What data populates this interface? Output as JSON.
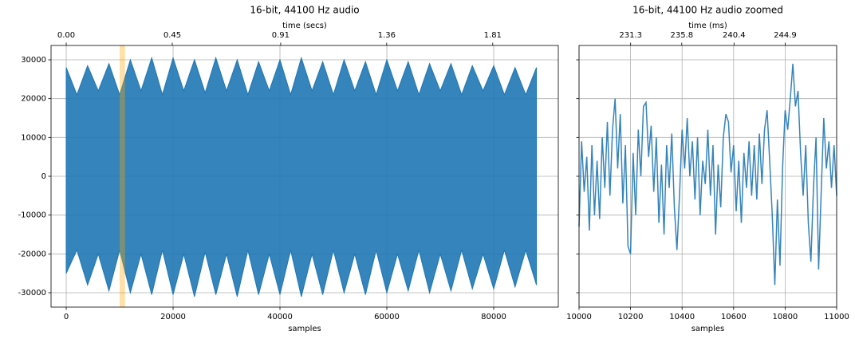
{
  "chart_data": [
    {
      "type": "area",
      "title": "16-bit, 44100 Hz audio",
      "xlabel": "samples",
      "x2label": "time (secs)",
      "color": "#1f77b4",
      "grid": true,
      "xlim": [
        -2840,
        92090
      ],
      "ylim": [
        -33700,
        33700
      ],
      "xticks": [
        0,
        20000,
        40000,
        60000,
        80000
      ],
      "yticks": [
        -30000,
        -20000,
        -10000,
        0,
        10000,
        20000,
        30000
      ],
      "x2lim": [
        -0.0644,
        2.0882
      ],
      "x2ticks": [
        {
          "value": 0,
          "label": "0.00"
        },
        0.45,
        0.91,
        1.36,
        1.81
      ],
      "span": {
        "x": [
          10000,
          11000
        ],
        "color": "#ffa500"
      },
      "x": [
        0,
        2000,
        4000,
        6000,
        8000,
        10000,
        12000,
        14000,
        16000,
        18000,
        20000,
        22000,
        24000,
        26000,
        28000,
        30000,
        32000,
        34000,
        36000,
        38000,
        40000,
        42000,
        44000,
        46000,
        48000,
        50000,
        52000,
        54000,
        56000,
        58000,
        60000,
        62000,
        64000,
        66000,
        68000,
        70000,
        72000,
        74000,
        76000,
        78000,
        80000,
        82000,
        84000,
        86000,
        88000
      ],
      "upper": [
        28000,
        21000,
        28500,
        22000,
        29000,
        21000,
        30000,
        22000,
        30500,
        21000,
        30500,
        22000,
        30000,
        21500,
        30500,
        22000,
        30000,
        21000,
        29500,
        22000,
        30000,
        21000,
        30500,
        22000,
        29500,
        21000,
        30000,
        22000,
        29500,
        21000,
        30000,
        22000,
        29500,
        21000,
        29000,
        22000,
        29000,
        21000,
        28500,
        22000,
        28500,
        21000,
        28000,
        21000,
        28000
      ],
      "lower": [
        -25000,
        -19000,
        -28000,
        -20000,
        -29500,
        -19000,
        -30000,
        -20000,
        -30500,
        -19000,
        -30500,
        -20000,
        -31000,
        -19500,
        -30500,
        -20000,
        -31000,
        -19000,
        -30500,
        -20000,
        -30500,
        -19000,
        -31000,
        -20000,
        -30500,
        -19000,
        -30000,
        -20000,
        -30500,
        -19000,
        -30000,
        -20000,
        -29500,
        -19000,
        -30000,
        -20000,
        -29500,
        -19000,
        -29000,
        -20000,
        -29000,
        -19000,
        -28500,
        -19000,
        -28000
      ]
    },
    {
      "type": "line",
      "title": "16-bit, 44100 Hz audio zoomed",
      "xlabel": "samples",
      "x2label": "time (ms)",
      "color": "#1f77b4",
      "grid": true,
      "sharey": true,
      "xlim": [
        10000,
        11000
      ],
      "ylim": [
        -33700,
        33700
      ],
      "xticks": [
        10000,
        10200,
        10400,
        10600,
        10800,
        11000
      ],
      "yticks": [
        -30000,
        -20000,
        -10000,
        0,
        10000,
        20000,
        30000
      ],
      "x2lim": [
        226.76,
        249.43
      ],
      "x2ticks": [
        231.3,
        235.8,
        240.4,
        244.9
      ],
      "x": [
        10000,
        10010,
        10020,
        10030,
        10040,
        10050,
        10060,
        10070,
        10080,
        10090,
        10100,
        10110,
        10120,
        10130,
        10140,
        10150,
        10160,
        10170,
        10180,
        10190,
        10200,
        10210,
        10220,
        10230,
        10240,
        10250,
        10260,
        10270,
        10280,
        10290,
        10300,
        10310,
        10320,
        10330,
        10340,
        10350,
        10360,
        10370,
        10380,
        10390,
        10400,
        10410,
        10420,
        10430,
        10440,
        10450,
        10460,
        10470,
        10480,
        10490,
        10500,
        10510,
        10520,
        10530,
        10540,
        10550,
        10560,
        10570,
        10580,
        10590,
        10600,
        10610,
        10620,
        10630,
        10640,
        10650,
        10660,
        10670,
        10680,
        10690,
        10700,
        10710,
        10720,
        10730,
        10740,
        10750,
        10760,
        10770,
        10780,
        10790,
        10800,
        10810,
        10820,
        10830,
        10840,
        10850,
        10860,
        10870,
        10880,
        10890,
        10900,
        10910,
        10920,
        10930,
        10940,
        10950,
        10960,
        10970,
        10980,
        10990,
        11000
      ],
      "values": [
        -13000,
        9000,
        -4000,
        5000,
        -14000,
        8000,
        -10000,
        4000,
        -11000,
        10000,
        -3000,
        14000,
        -5000,
        12000,
        20000,
        2000,
        16000,
        -7000,
        8000,
        -18000,
        -20000,
        6000,
        -10000,
        12000,
        0,
        18000,
        19000,
        5000,
        13000,
        -4000,
        10000,
        -12000,
        3000,
        -15000,
        8000,
        -3000,
        11000,
        -8000,
        -19000,
        -5000,
        12000,
        2000,
        15000,
        0,
        9000,
        -6000,
        10000,
        -10000,
        4000,
        -2000,
        12000,
        -5000,
        8000,
        -15000,
        3000,
        -8000,
        10000,
        16000,
        14000,
        1000,
        8000,
        -9000,
        4000,
        -12000,
        6000,
        -3000,
        9000,
        -5000,
        8000,
        -6000,
        11000,
        -2000,
        12000,
        17000,
        4000,
        -10000,
        -28000,
        -6000,
        -23000,
        2000,
        17000,
        12000,
        20000,
        29000,
        18000,
        22000,
        6000,
        -5000,
        8000,
        -12000,
        -22000,
        -3000,
        10000,
        -24000,
        -4000,
        15000,
        2000,
        9000,
        -3000,
        8000,
        -5000
      ]
    }
  ]
}
